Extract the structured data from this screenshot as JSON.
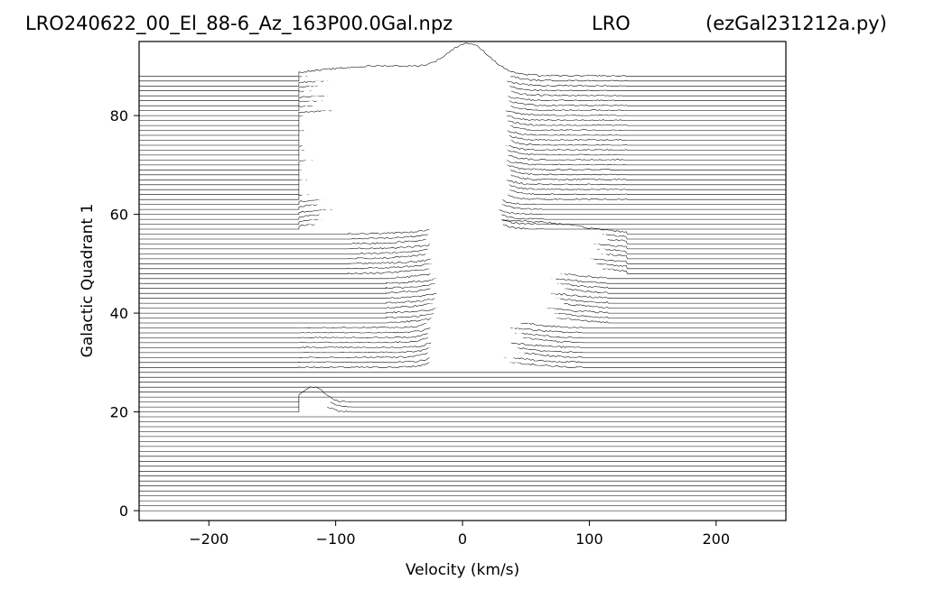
{
  "header": {
    "file_title": "LRO240622_00_El_88-6_Az_163P00.0Gal.npz",
    "site_title": "LRO",
    "program_title": "(ezGal231212a.py)"
  },
  "chart_data": {
    "type": "line",
    "subtype": "stacked-spectra",
    "xlabel": "Velocity (km/s)",
    "ylabel": "Galactic Quadrant 1",
    "xlim": [
      -255,
      255
    ],
    "ylim": [
      -2,
      95
    ],
    "x_ticks": [
      -200,
      -100,
      0,
      100,
      200
    ],
    "y_ticks": [
      0,
      20,
      40,
      60,
      80
    ],
    "x_tick_labels": [
      "−200",
      "−100",
      "0",
      "100",
      "200"
    ],
    "y_tick_labels": [
      "0",
      "20",
      "40",
      "60",
      "80"
    ],
    "grid": false,
    "line_color": "#000000",
    "trace_spacing": 1,
    "trace_count": 89,
    "trace_offsets_range": [
      0,
      88
    ],
    "signal_x_range": [
      -129,
      130
    ],
    "empty_trace_offsets": [
      [
        0,
        19
      ],
      [
        26,
        28
      ]
    ],
    "rows": [
      {
        "offsets": [
          20,
          22
        ],
        "x_range": [
          -129,
          -85
        ],
        "features": [
          {
            "center": -118,
            "width": 9,
            "amp": 3.2
          },
          {
            "center": -2,
            "width": 5,
            "amp": 1.2
          },
          {
            "center": 10,
            "width": 5,
            "amp": 0.9
          }
        ]
      },
      {
        "offsets": [
          29,
          37
        ],
        "x_range": [
          -129,
          95
        ],
        "features": [
          {
            "center": -2,
            "width": 12,
            "amp": 5.5
          },
          {
            "center": 20,
            "width": 28,
            "amp": 1.5
          }
        ]
      },
      {
        "offsets": [
          38,
          47
        ],
        "x_range": [
          -60,
          115
        ],
        "features": [
          {
            "center": 2,
            "width": 10,
            "amp": 5.0
          },
          {
            "center": 30,
            "width": 35,
            "amp": 2.5
          }
        ]
      },
      {
        "offsets": [
          48,
          56
        ],
        "x_range": [
          -90,
          130
        ],
        "features": [
          {
            "center": 5,
            "width": 12,
            "amp": 6.5
          },
          {
            "center": 45,
            "width": 45,
            "amp": 3.0
          }
        ]
      },
      {
        "offsets": [
          57,
          62
        ],
        "x_range": [
          -129,
          65
        ],
        "features": [
          {
            "center": 3,
            "width": 14,
            "amp": 6.0
          },
          {
            "center": -60,
            "width": 40,
            "amp": 2.5
          }
        ]
      },
      {
        "offsets": [
          63,
          79
        ],
        "x_range": [
          -129,
          130
        ],
        "features": [
          {
            "center": 5,
            "width": 16,
            "amp": 6.0
          },
          {
            "center": -70,
            "width": 45,
            "amp": 2.5
          }
        ]
      },
      {
        "offsets": [
          80,
          88
        ],
        "x_range": [
          -129,
          130
        ],
        "features": [
          {
            "center": 5,
            "width": 16,
            "amp": 5.5
          },
          {
            "center": -60,
            "width": 50,
            "amp": 2.0
          }
        ]
      }
    ]
  }
}
